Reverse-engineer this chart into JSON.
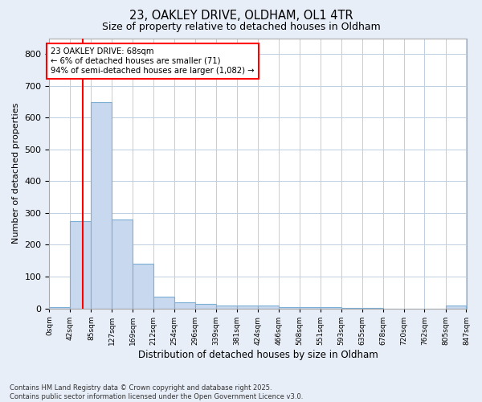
{
  "title": "23, OAKLEY DRIVE, OLDHAM, OL1 4TR",
  "subtitle": "Size of property relative to detached houses in Oldham",
  "xlabel": "Distribution of detached houses by size in Oldham",
  "ylabel": "Number of detached properties",
  "bin_edges": [
    0,
    42,
    85,
    127,
    169,
    212,
    254,
    296,
    339,
    381,
    424,
    466,
    508,
    551,
    593,
    635,
    678,
    720,
    762,
    805,
    847
  ],
  "bar_heights": [
    5,
    275,
    648,
    280,
    140,
    38,
    20,
    15,
    10,
    10,
    8,
    5,
    3,
    3,
    2,
    2,
    0,
    0,
    0,
    10
  ],
  "bar_color": "#c8d8ee",
  "bar_edge_color": "#7bafd4",
  "property_size": 68,
  "vline_color": "red",
  "annotation_text": "23 OAKLEY DRIVE: 68sqm\n← 6% of detached houses are smaller (71)\n94% of semi-detached houses are larger (1,082) →",
  "annotation_box_color": "white",
  "annotation_box_edge_color": "red",
  "ylim": [
    0,
    850
  ],
  "yticks": [
    0,
    100,
    200,
    300,
    400,
    500,
    600,
    700,
    800
  ],
  "footer_text": "Contains HM Land Registry data © Crown copyright and database right 2025.\nContains public sector information licensed under the Open Government Licence v3.0.",
  "background_color": "#e8eef8",
  "plot_background": "white",
  "grid_color": "#c0cfe0"
}
